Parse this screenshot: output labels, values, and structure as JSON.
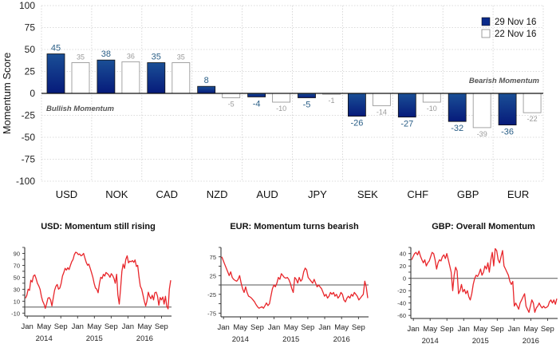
{
  "chart_data": [
    {
      "type": "bar",
      "title": "",
      "ylabel": "Momentum Score",
      "xlabel": "",
      "ylim": [
        -100,
        100
      ],
      "yticks": [
        100,
        75,
        50,
        25,
        0,
        -25,
        -50,
        -75,
        -100
      ],
      "grid": true,
      "legend_position": "top-right",
      "categories": [
        "USD",
        "NOK",
        "CAD",
        "NZD",
        "AUD",
        "JPY",
        "SEK",
        "CHF",
        "GBP",
        "EUR"
      ],
      "series": [
        {
          "name": "29 Nov 16",
          "color": "#0a2a8a",
          "values": [
            45,
            38,
            35,
            8,
            -4,
            -5,
            -26,
            -27,
            -32,
            -36
          ]
        },
        {
          "name": "22 Nov 16",
          "color": "#ffffff",
          "values": [
            35,
            36,
            35,
            -5,
            -10,
            -1,
            -14,
            -10,
            -39,
            -22
          ]
        }
      ],
      "annotations": [
        "Bullish Momentum",
        "Bearish Momentum"
      ]
    },
    {
      "type": "line",
      "title": "USD: Momentum still rising",
      "ylim": [
        -15,
        100
      ],
      "yticks": [
        90,
        70,
        50,
        30,
        10,
        -10
      ],
      "xticks": [
        "Jan",
        "May",
        "Sep",
        "Jan",
        "May",
        "Sep",
        "Jan",
        "May",
        "Sep"
      ],
      "xyears": [
        "2014",
        "2015",
        "2016"
      ],
      "reference_line": 0,
      "series": [
        {
          "name": "USD",
          "color": "#e8262b",
          "values": [
            15,
            20,
            30,
            28,
            45,
            42,
            52,
            54,
            48,
            40,
            36,
            30,
            18,
            10,
            5,
            -2,
            6,
            15,
            16,
            12,
            2,
            15,
            28,
            35,
            38,
            30,
            32,
            40,
            52,
            58,
            65,
            62,
            66,
            63,
            70,
            76,
            80,
            88,
            92,
            91,
            88,
            89,
            86,
            87,
            90,
            82,
            75,
            70,
            72,
            65,
            58,
            50,
            40,
            32,
            30,
            24,
            40,
            50,
            48,
            55,
            52,
            58,
            56,
            54,
            50,
            56,
            53,
            48,
            40,
            55,
            20,
            5,
            30,
            60,
            72,
            65,
            80,
            86,
            74,
            77,
            76,
            78,
            75,
            79,
            68,
            70,
            50,
            35,
            30,
            20,
            10,
            2,
            10,
            25,
            18,
            14,
            20,
            12,
            24,
            25,
            18,
            3,
            16,
            12,
            17,
            5,
            18,
            2,
            -3,
            30,
            45
          ]
        }
      ]
    },
    {
      "type": "line",
      "title": "EUR: Momentum turns bearish",
      "ylim": [
        -85,
        100
      ],
      "yticks": [
        75,
        25,
        -25,
        -75
      ],
      "xticks": [
        "Jan",
        "May",
        "Sep",
        "Jan",
        "May",
        "Sep",
        "Jan",
        "May",
        "Sep"
      ],
      "xyears": [
        "2014",
        "2015",
        "2016"
      ],
      "reference_line": 0,
      "series": [
        {
          "name": "EUR",
          "color": "#e8262b",
          "values": [
            75,
            65,
            55,
            45,
            35,
            25,
            35,
            20,
            15,
            12,
            10,
            15,
            25,
            5,
            -10,
            -20,
            -5,
            -20,
            -30,
            -32,
            -35,
            -40,
            -45,
            -52,
            -58,
            -62,
            -60,
            -58,
            -62,
            -55,
            -48,
            -55,
            -50,
            -30,
            -10,
            0,
            -5,
            5,
            20,
            15,
            30,
            25,
            20,
            18,
            20,
            15,
            5,
            -10,
            -20,
            20,
            15,
            5,
            20,
            10,
            15,
            35,
            45,
            40,
            20,
            15,
            10,
            5,
            15,
            5,
            -5,
            0,
            -5,
            -10,
            -20,
            -30,
            -25,
            -35,
            -30,
            -20,
            -25,
            -20,
            -30,
            -25,
            -35,
            -30,
            -20,
            -25,
            -40,
            -45,
            -35,
            -30,
            -35,
            -25,
            -30,
            -20,
            -25,
            -30,
            -40,
            -35,
            -30,
            -25,
            10,
            -5,
            -35
          ]
        }
      ]
    },
    {
      "type": "line",
      "title": "GBP: Overall Momentum",
      "ylim": [
        -65,
        50
      ],
      "yticks": [
        40,
        20,
        0,
        -20,
        -40,
        -60
      ],
      "xticks": [
        "Jan",
        "May",
        "Sep",
        "Jan",
        "May",
        "Sep",
        "Jan",
        "May",
        "Sep"
      ],
      "xyears": [
        "2014",
        "2015",
        "2016"
      ],
      "reference_line": 0,
      "series": [
        {
          "name": "GBP",
          "color": "#e8262b",
          "values": [
            30,
            35,
            40,
            42,
            38,
            44,
            36,
            30,
            25,
            30,
            20,
            25,
            28,
            35,
            42,
            40,
            30,
            15,
            25,
            30,
            28,
            35,
            38,
            32,
            40,
            30,
            20,
            10,
            -20,
            5,
            18,
            12,
            -25,
            -20,
            -10,
            -22,
            -18,
            -25,
            -20,
            -30,
            -35,
            -25,
            -10,
            0,
            5,
            3,
            8,
            15,
            5,
            10,
            20,
            15,
            25,
            10,
            30,
            42,
            20,
            48,
            45,
            30,
            25,
            35,
            45,
            20,
            15,
            10,
            5,
            -5,
            -10,
            -5,
            -45,
            -40,
            -45,
            -50,
            -40,
            -35,
            -30,
            -25,
            -45,
            -50,
            -55,
            -45,
            -35,
            -40,
            -55,
            -48,
            -45,
            -40,
            -45,
            -48,
            -45,
            -48,
            -47,
            -45,
            -38,
            -35,
            -40,
            -35,
            -42,
            -33
          ]
        }
      ]
    }
  ]
}
